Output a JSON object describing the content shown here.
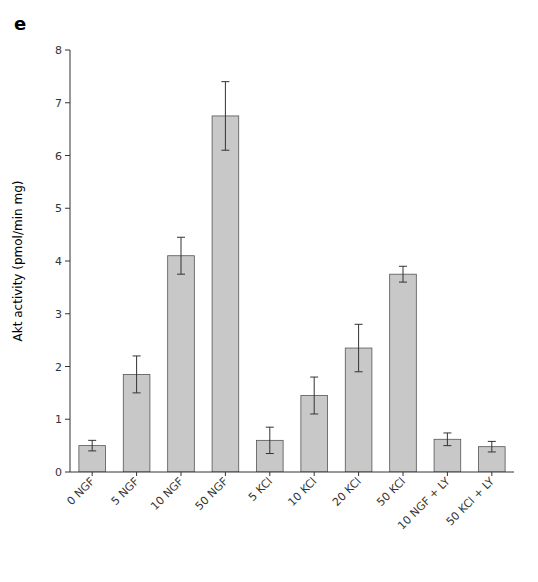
{
  "chart_data": {
    "type": "bar",
    "title": "e",
    "categories": [
      "0 NGF",
      "5 NGF",
      "10 NGF",
      "50 NGF",
      "5 KCl",
      "10 KCl",
      "20 KCl",
      "50 KCl",
      "10 NGF + LY",
      "50 KCl + LY"
    ],
    "values": [
      0.5,
      1.85,
      4.1,
      6.75,
      0.6,
      1.45,
      2.35,
      3.75,
      0.62,
      0.48
    ],
    "errors": [
      0.1,
      0.35,
      0.35,
      0.65,
      0.25,
      0.35,
      0.45,
      0.15,
      0.12,
      0.1
    ],
    "color": "#c8c8c8",
    "ylabel": "Akt activity (pmol/min mg)",
    "ylim": [
      0,
      8
    ],
    "yticks": [
      0,
      1,
      2,
      3,
      4,
      5,
      6,
      7,
      8
    ],
    "grid": false
  }
}
